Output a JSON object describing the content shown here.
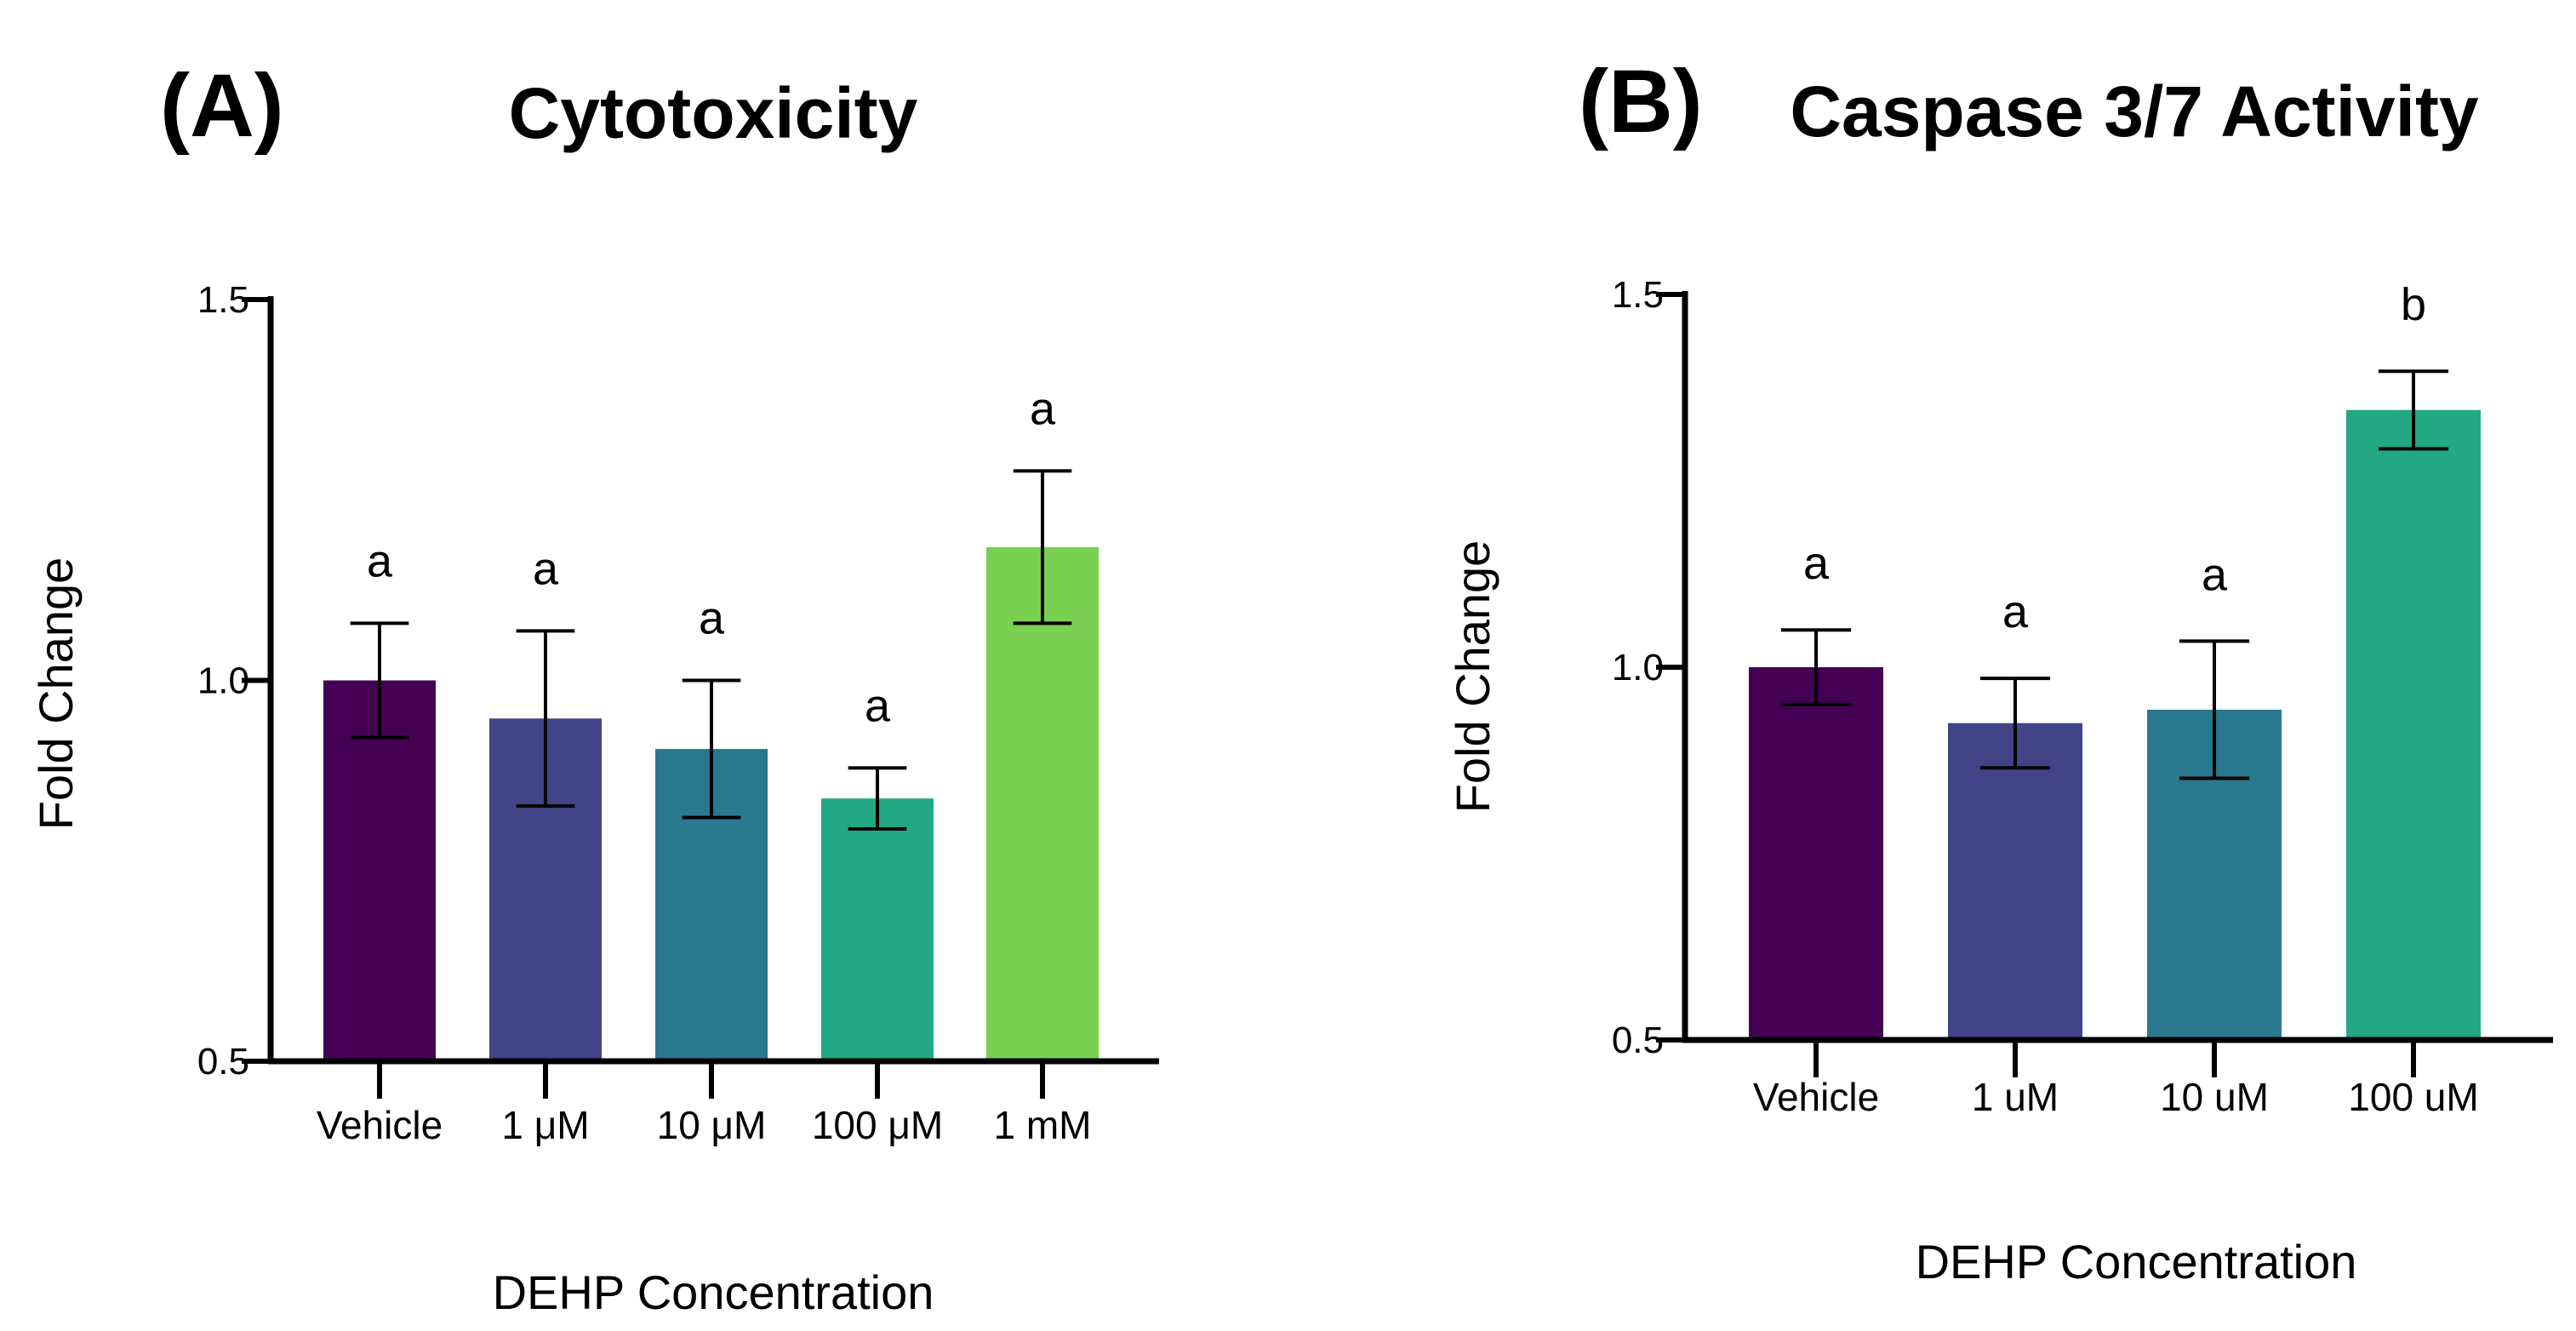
{
  "chart_data": [
    {
      "type": "bar",
      "panel_label": "(A)",
      "title": "Cytotoxicity",
      "xlabel": "DEHP Concentration",
      "ylabel": "Fold Change",
      "ylim": [
        0.5,
        1.5
      ],
      "yticks": [
        "0.5",
        "1.0",
        "1.5"
      ],
      "categories": [
        "Vehicle",
        "1 μM",
        "10 μM",
        "100 μM",
        "1 mM"
      ],
      "values": [
        1.0,
        0.95,
        0.91,
        0.845,
        1.175
      ],
      "errors": [
        0.075,
        0.115,
        0.09,
        0.04,
        0.1
      ],
      "significance": [
        "a",
        "a",
        "a",
        "a",
        "a"
      ],
      "colors": [
        "#440154",
        "#414487",
        "#2a788e",
        "#22a884",
        "#7ad151"
      ]
    },
    {
      "type": "bar",
      "panel_label": "(B)",
      "title": "Caspase 3/7 Activity",
      "xlabel": "DEHP Concentration",
      "ylabel": "Fold Change",
      "ylim": [
        0.5,
        1.5
      ],
      "yticks": [
        "0.5",
        "1.0",
        "1.5"
      ],
      "categories": [
        "Vehicle",
        "1 uM",
        "10 uM",
        "100 uM"
      ],
      "values": [
        1.0,
        0.925,
        0.943,
        1.345
      ],
      "errors": [
        0.05,
        0.06,
        0.092,
        0.052
      ],
      "significance": [
        "a",
        "a",
        "a",
        "b"
      ],
      "colors": [
        "#440154",
        "#414487",
        "#2a788e",
        "#22a884"
      ]
    }
  ]
}
